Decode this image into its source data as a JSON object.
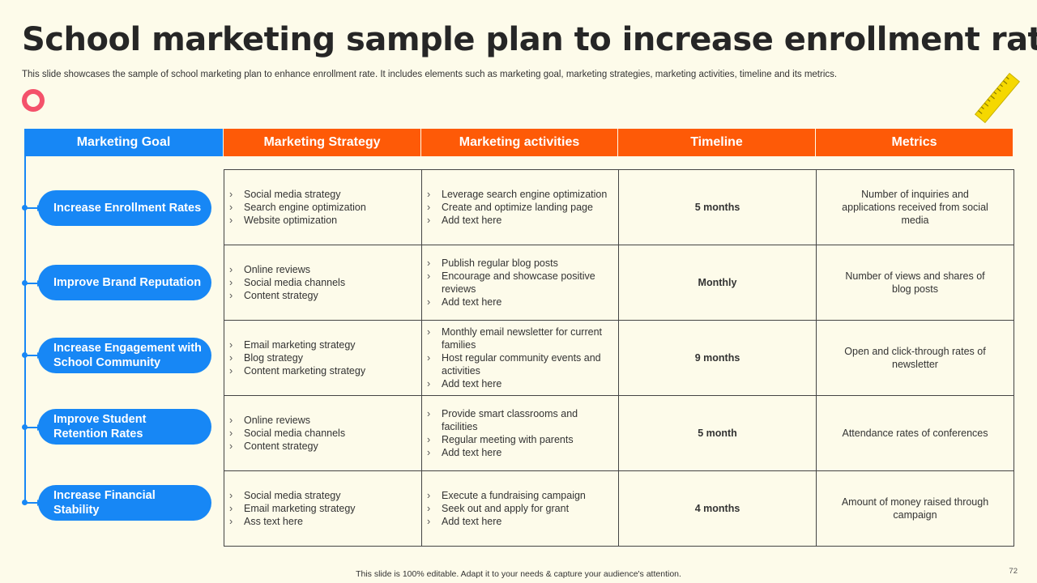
{
  "title": "School marketing sample plan to increase enrollment rate",
  "subtitle": "This slide showcases the sample of school marketing plan to enhance enrollment rate. It includes elements such as marketing goal, marketing strategies, marketing activities, timeline and its metrics.",
  "colors": {
    "blue": "#1787f5",
    "orange": "#fe5a07",
    "background": "#fdfbea",
    "ring": "#f4526b",
    "ruler": "#f5d800"
  },
  "icons": [
    "ring-icon",
    "ruler-icon",
    "chevron-right-icon"
  ],
  "headers": {
    "goal": "Marketing Goal",
    "strategy": "Marketing Strategy",
    "activities": "Marketing activities",
    "timeline": "Timeline",
    "metrics": "Metrics"
  },
  "rows": [
    {
      "goal": "Increase Enrollment Rates",
      "strategy": [
        "Social media strategy",
        "Search engine optimization",
        "Website optimization"
      ],
      "activities": [
        "Leverage  search engine optimization",
        "Create and optimize landing page",
        "Add text here"
      ],
      "timeline": "5 months",
      "metrics": "Number of inquiries and applications received from social media"
    },
    {
      "goal": "Improve Brand Reputation",
      "strategy": [
        "Online reviews",
        "Social media channels",
        "Content strategy"
      ],
      "activities": [
        "Publish regular blog posts",
        "Encourage and showcase positive reviews",
        "Add text here"
      ],
      "timeline": "Monthly",
      "metrics": "Number of views and shares of blog posts"
    },
    {
      "goal": "Increase Engagement with School Community",
      "strategy": [
        "Email marketing strategy",
        "Blog strategy",
        "Content marketing strategy"
      ],
      "activities": [
        "Monthly email newsletter for current families",
        "Host regular community events and activities",
        "Add text here"
      ],
      "timeline": "9 months",
      "metrics": "Open and click-through rates of newsletter"
    },
    {
      "goal": "Improve Student Retention Rates",
      "strategy": [
        "Online reviews",
        "Social media channels",
        "Content strategy"
      ],
      "activities": [
        "Provide  smart classrooms and facilities",
        "Regular meeting with parents",
        "Add text here"
      ],
      "timeline": "5 month",
      "metrics": "Attendance rates of conferences"
    },
    {
      "goal": "Increase Financial Stability",
      "strategy": [
        "Social media strategy",
        "Email marketing strategy",
        "Ass text here"
      ],
      "activities": [
        "Execute a fundraising  campaign",
        "Seek out and apply for grant",
        "Add text here"
      ],
      "timeline": "4 months",
      "metrics": "Amount of money raised through campaign"
    }
  ],
  "footer": "This slide is 100% editable.  Adapt it to your needs & capture your audience's attention.",
  "page_number": "72"
}
